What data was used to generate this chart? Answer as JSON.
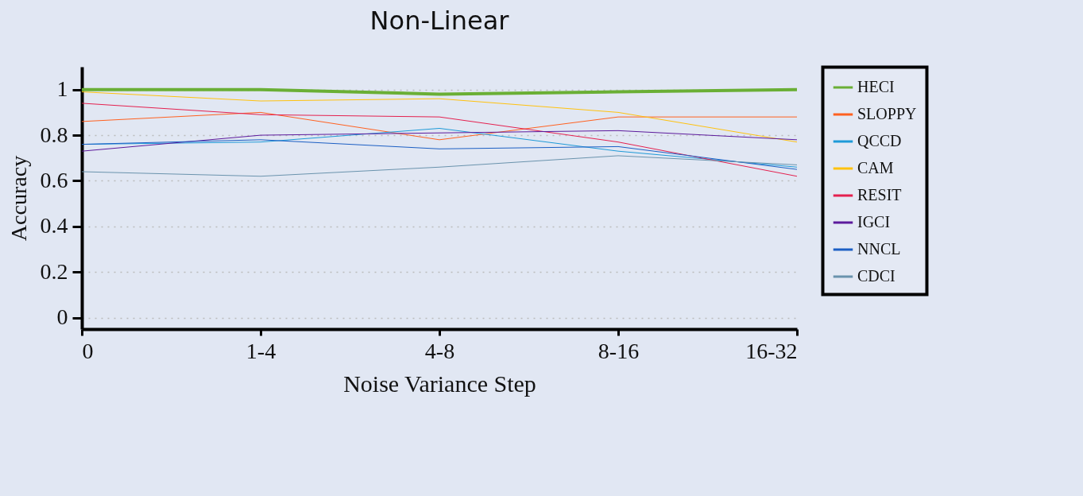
{
  "chart_data": {
    "type": "line",
    "title": "Non-Linear",
    "xlabel": "Noise Variance Step",
    "ylabel": "Accuracy",
    "categories": [
      "0",
      "1-4",
      "4-8",
      "8-16",
      "16-32"
    ],
    "ylim": [
      -0.05,
      1.1
    ],
    "yticks": [
      0,
      0.2,
      0.4,
      0.6,
      0.8,
      1
    ],
    "grid": "y",
    "legend": "right",
    "line_style": "solid",
    "marker": "none",
    "series": [
      {
        "name": "HECI",
        "color": "#6aaf35",
        "values": [
          1,
          1,
          0.98,
          0.99,
          1
        ]
      },
      {
        "name": "SLOPPY",
        "color": "#ff6120",
        "values": [
          0.86,
          0.9,
          0.78,
          0.88,
          0.88
        ]
      },
      {
        "name": "QCCD",
        "color": "#1e9ad8",
        "values": [
          0.76,
          0.77,
          0.83,
          0.73,
          0.66
        ]
      },
      {
        "name": "CAM",
        "color": "#ffc20e",
        "values": [
          0.99,
          0.95,
          0.96,
          0.9,
          0.77
        ]
      },
      {
        "name": "RESIT",
        "color": "#e4204f",
        "values": [
          0.94,
          0.89,
          0.88,
          0.77,
          0.62
        ]
      },
      {
        "name": "IGCI",
        "color": "#5c1a9c",
        "values": [
          0.73,
          0.8,
          0.81,
          0.82,
          0.78
        ]
      },
      {
        "name": "NNCL",
        "color": "#1c5fc4",
        "values": [
          0.76,
          0.78,
          0.74,
          0.75,
          0.65
        ]
      },
      {
        "name": "CDCI",
        "color": "#6a93ad",
        "values": [
          0.64,
          0.62,
          0.66,
          0.71,
          0.67
        ]
      }
    ]
  }
}
